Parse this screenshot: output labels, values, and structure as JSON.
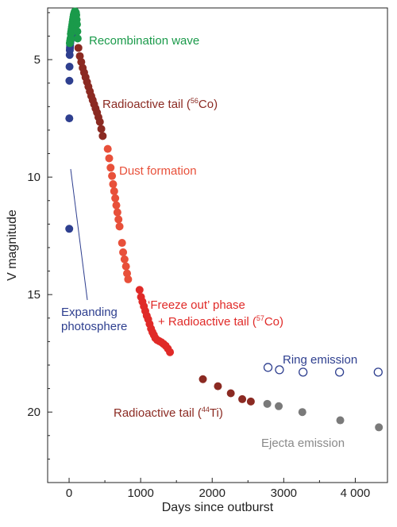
{
  "chart_data": {
    "type": "scatter",
    "title": "",
    "xlabel": "Days since outburst",
    "ylabel": "V magnitude",
    "xlim": [
      -300,
      4450
    ],
    "ylim": [
      23,
      2.8
    ],
    "y_inverted": true,
    "grid": false,
    "x_ticks": [
      0,
      1000,
      2000,
      3000,
      4000
    ],
    "x_tick_labels": [
      "0",
      "1000",
      "2000",
      "3000",
      "4 000"
    ],
    "y_ticks": [
      5,
      10,
      15,
      20
    ],
    "y_tick_labels": [
      "5",
      "10",
      "15",
      "20"
    ],
    "colors": {
      "frame": "#222222",
      "expanding_photosphere": "#2e3f8f",
      "recombination_wave": "#1a9a4a",
      "radioactive_56co": "#8b2a22",
      "dust_formation": "#e8503a",
      "freeze_out_57co": "#e02a28",
      "radioactive_44ti": "#8b2a22",
      "ring_emission": "#2e3f8f",
      "ejecta_emission": "#7a7a7a",
      "ejecta_label": "#8a8a8a"
    },
    "series": [
      {
        "key": "expanding_photosphere",
        "marker": "filled",
        "points": [
          [
            2,
            12.2
          ],
          [
            3,
            7.5
          ],
          [
            4,
            5.9
          ],
          [
            6,
            5.3
          ],
          [
            8,
            4.8
          ],
          [
            10,
            4.6
          ],
          [
            12,
            4.5
          ],
          [
            14,
            4.4
          ],
          [
            16,
            4.3
          ],
          [
            20,
            4.2
          ],
          [
            25,
            4.1
          ],
          [
            30,
            4.0
          ],
          [
            35,
            4.0
          ],
          [
            40,
            3.9
          ],
          [
            45,
            3.9
          ],
          [
            50,
            3.8
          ]
        ]
      },
      {
        "key": "recombination_wave",
        "marker": "filled",
        "points": [
          [
            10,
            4.3
          ],
          [
            15,
            4.2
          ],
          [
            20,
            4.1
          ],
          [
            25,
            3.9
          ],
          [
            30,
            3.8
          ],
          [
            35,
            3.7
          ],
          [
            40,
            3.6
          ],
          [
            45,
            3.5
          ],
          [
            50,
            3.4
          ],
          [
            55,
            3.3
          ],
          [
            60,
            3.2
          ],
          [
            65,
            3.1
          ],
          [
            70,
            3.05
          ],
          [
            75,
            3.0
          ],
          [
            80,
            2.95
          ],
          [
            85,
            2.95
          ],
          [
            90,
            3.0
          ],
          [
            95,
            3.0
          ],
          [
            100,
            3.1
          ],
          [
            105,
            3.3
          ],
          [
            110,
            3.5
          ],
          [
            115,
            3.8
          ],
          [
            120,
            4.1
          ]
        ]
      },
      {
        "key": "radioactive_56co",
        "marker": "filled",
        "points": [
          [
            130,
            4.5
          ],
          [
            150,
            4.85
          ],
          [
            170,
            5.1
          ],
          [
            190,
            5.35
          ],
          [
            210,
            5.55
          ],
          [
            230,
            5.75
          ],
          [
            250,
            5.95
          ],
          [
            270,
            6.15
          ],
          [
            290,
            6.35
          ],
          [
            310,
            6.55
          ],
          [
            330,
            6.72
          ],
          [
            350,
            6.9
          ],
          [
            370,
            7.08
          ],
          [
            390,
            7.25
          ],
          [
            410,
            7.45
          ],
          [
            430,
            7.65
          ],
          [
            450,
            7.95
          ],
          [
            470,
            8.25
          ]
        ]
      },
      {
        "key": "dust_formation",
        "marker": "filled",
        "points": [
          [
            540,
            8.8
          ],
          [
            560,
            9.2
          ],
          [
            580,
            9.6
          ],
          [
            600,
            9.95
          ],
          [
            615,
            10.3
          ],
          [
            630,
            10.6
          ],
          [
            645,
            10.9
          ],
          [
            660,
            11.2
          ],
          [
            675,
            11.5
          ],
          [
            690,
            11.8
          ],
          [
            705,
            12.1
          ],
          [
            740,
            12.8
          ],
          [
            755,
            13.2
          ],
          [
            775,
            13.5
          ],
          [
            795,
            13.8
          ],
          [
            810,
            14.1
          ],
          [
            825,
            14.35
          ]
        ]
      },
      {
        "key": "freeze_out_57co",
        "marker": "filled",
        "points": [
          [
            985,
            14.8
          ],
          [
            1005,
            15.1
          ],
          [
            1025,
            15.3
          ],
          [
            1045,
            15.5
          ],
          [
            1065,
            15.7
          ],
          [
            1085,
            15.9
          ],
          [
            1105,
            16.05
          ],
          [
            1125,
            16.25
          ],
          [
            1145,
            16.45
          ],
          [
            1165,
            16.6
          ],
          [
            1185,
            16.72
          ],
          [
            1205,
            16.85
          ],
          [
            1230,
            16.93
          ],
          [
            1260,
            16.98
          ],
          [
            1290,
            17.03
          ],
          [
            1320,
            17.1
          ],
          [
            1350,
            17.18
          ],
          [
            1380,
            17.3
          ],
          [
            1410,
            17.45
          ]
        ]
      },
      {
        "key": "radioactive_44ti",
        "marker": "filled",
        "points": [
          [
            1870,
            18.6
          ],
          [
            2080,
            18.9
          ],
          [
            2260,
            19.2
          ],
          [
            2420,
            19.45
          ],
          [
            2540,
            19.55
          ]
        ]
      },
      {
        "key": "ring_emission",
        "marker": "open",
        "points": [
          [
            2780,
            18.1
          ],
          [
            2940,
            18.2
          ],
          [
            3270,
            18.3
          ],
          [
            3780,
            18.3
          ],
          [
            4320,
            18.3
          ]
        ]
      },
      {
        "key": "ejecta_emission",
        "marker": "filled",
        "points": [
          [
            2770,
            19.65
          ],
          [
            2930,
            19.75
          ],
          [
            3260,
            20.0
          ],
          [
            3790,
            20.35
          ],
          [
            4330,
            20.65
          ]
        ]
      }
    ],
    "annotations": {
      "recombination_wave": "Recombination wave",
      "radioactive_56co_prefix": "Radioactive tail (",
      "radioactive_56co_mass": "56",
      "radioactive_56co_element": "Co)",
      "dust_formation": "Dust formation",
      "expanding_line1": "Expanding",
      "expanding_line2": "photosphere",
      "freeze_out_line1": "‘Freeze out’ phase",
      "freeze_out_line2_prefix": "+ Radioactive tail (",
      "freeze_out_mass": "57",
      "freeze_out_element": "Co)",
      "ring_emission": "Ring emission",
      "radioactive_44ti_prefix": "Radioactive tail (",
      "radioactive_44ti_mass": "44",
      "radioactive_44ti_element": "Ti)",
      "ejecta_emission": "Ejecta emission"
    }
  }
}
